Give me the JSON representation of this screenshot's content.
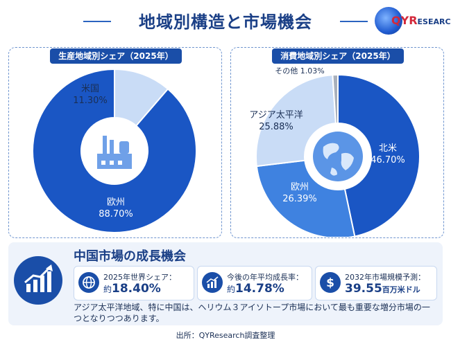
{
  "title": "地域別構造と市場機会",
  "logo": {
    "text_q": "QYR",
    "text_rest": "ESEARCH"
  },
  "chart_data": [
    {
      "type": "pie",
      "title": "生産地域別シェア（2025年）",
      "slices": [
        {
          "label": "欧州",
          "value": 88.7,
          "display": "88.70%",
          "color": "#1a56c4"
        },
        {
          "label": "米国",
          "value": 11.3,
          "display": "11.30%",
          "color": "#c9dcf6"
        }
      ],
      "center_icon": "factory-icon"
    },
    {
      "type": "pie",
      "title": "消費地域別シェア（2025年）",
      "slices": [
        {
          "label": "北米",
          "value": 46.7,
          "display": "46.70%",
          "color": "#1a56c4"
        },
        {
          "label": "欧州",
          "value": 26.39,
          "display": "26.39%",
          "color": "#3f82e0"
        },
        {
          "label": "アジア太平洋",
          "value": 25.88,
          "display": "25.88%",
          "color": "#c9dcf6"
        },
        {
          "label": "その他",
          "value": 1.03,
          "display": "1.03%",
          "color": "#a8b0bc"
        }
      ],
      "center_icon": "globe-icon"
    }
  ],
  "china": {
    "title": "中国市場の成長機会",
    "stats": [
      {
        "label": "2025年世界シェア：",
        "prefix": "約",
        "value": "18.40%",
        "unit": "",
        "icon": "globe-icon"
      },
      {
        "label": "今後の年平均成長率：",
        "prefix": "約",
        "value": "14.78%",
        "unit": "",
        "icon": "growth-chart-icon"
      },
      {
        "label": "2032年市場規模予測：",
        "prefix": "",
        "value": "39.55",
        "unit": "百万米ドル",
        "icon": "dollar-icon"
      }
    ],
    "description": "アジア太平洋地域、特に中国は、ヘリウム３アイソトープ市場において最も重要な増分市場の一つとなりつつあります。"
  },
  "source": "出所：QYResearch調査整理"
}
